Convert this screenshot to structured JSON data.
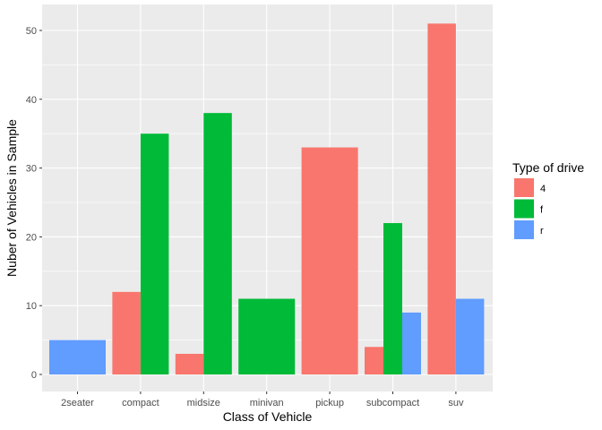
{
  "chart_data": {
    "type": "bar",
    "xlabel": "Class of Vehicle",
    "ylabel": "Nuber of Vehicles in Sample",
    "categories": [
      "2seater",
      "compact",
      "midsize",
      "minivan",
      "pickup",
      "subcompact",
      "suv"
    ],
    "yticks": [
      0,
      10,
      20,
      30,
      40,
      50
    ],
    "ylim": [
      0,
      53.5
    ],
    "grid": true,
    "legend": {
      "title": "Type of drive",
      "position": "right",
      "entries": [
        {
          "key": "4",
          "label": "4",
          "color": "#F8766D"
        },
        {
          "key": "f",
          "label": "f",
          "color": "#00BA38"
        },
        {
          "key": "r",
          "label": "r",
          "color": "#619CFF"
        }
      ]
    },
    "bars": [
      {
        "category": "2seater",
        "groups": [
          {
            "drive": "r",
            "value": 5
          }
        ]
      },
      {
        "category": "compact",
        "groups": [
          {
            "drive": "4",
            "value": 12
          },
          {
            "drive": "f",
            "value": 35
          }
        ]
      },
      {
        "category": "midsize",
        "groups": [
          {
            "drive": "4",
            "value": 3
          },
          {
            "drive": "f",
            "value": 38
          }
        ]
      },
      {
        "category": "minivan",
        "groups": [
          {
            "drive": "f",
            "value": 11
          }
        ]
      },
      {
        "category": "pickup",
        "groups": [
          {
            "drive": "4",
            "value": 33
          }
        ]
      },
      {
        "category": "subcompact",
        "groups": [
          {
            "drive": "4",
            "value": 4
          },
          {
            "drive": "f",
            "value": 22
          },
          {
            "drive": "r",
            "value": 9
          }
        ]
      },
      {
        "category": "suv",
        "groups": [
          {
            "drive": "4",
            "value": 51
          },
          {
            "drive": "r",
            "value": 11
          }
        ]
      }
    ],
    "colors": {
      "panel_background": "#EBEBEB",
      "grid": "#FFFFFF"
    }
  }
}
